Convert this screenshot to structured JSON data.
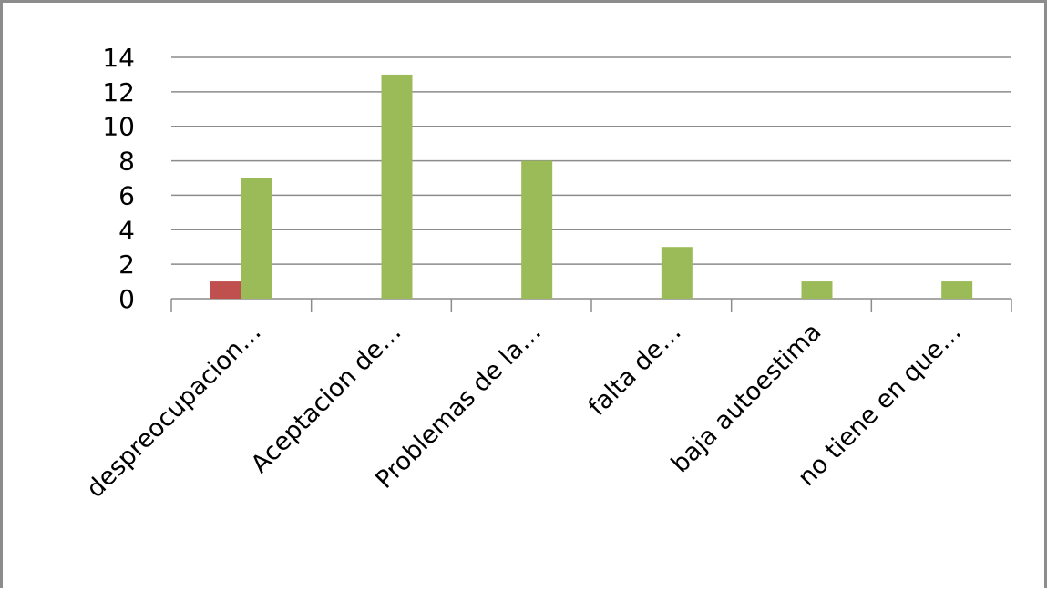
{
  "chart_data": {
    "type": "bar",
    "categories": [
      "despreocupacion…",
      "Aceptacion de…",
      "Problemas de la…",
      "falta de…",
      "baja autoestima",
      "no tiene en que…"
    ],
    "series": [
      {
        "values": [
          1,
          0,
          0,
          0,
          0,
          0
        ],
        "color": "#c0504d"
      },
      {
        "values": [
          7,
          13,
          8,
          3,
          1,
          1
        ],
        "color": "#9bbb59"
      }
    ],
    "yticks": [
      "0",
      "2",
      "4",
      "6",
      "8",
      "10",
      "12",
      "14"
    ],
    "ylim": [
      0,
      14
    ],
    "grid": true,
    "legend": "none"
  }
}
